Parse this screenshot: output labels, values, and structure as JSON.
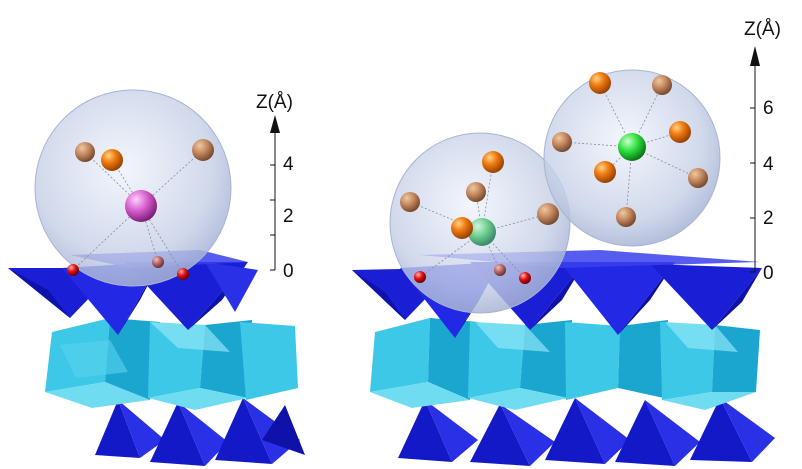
{
  "panels": [
    {
      "id": "left",
      "axis": {
        "label": "Z(Å)",
        "ticks": [
          "0",
          "2",
          "4"
        ]
      },
      "central_atom_color": "#d860d0",
      "ligand_color": "#e87a10"
    },
    {
      "id": "right",
      "axis": {
        "label": "Z(Å)",
        "ticks": [
          "0",
          "2",
          "4",
          "6"
        ]
      },
      "central_atom_color": "#30e040",
      "ligand_color": "#e87a10"
    }
  ],
  "colors": {
    "tetrahedra": "#1a1fd6",
    "octahedra": "#3ec8e8",
    "sphere": "#c8d2ec",
    "surface_oxygen": "#e01010"
  }
}
